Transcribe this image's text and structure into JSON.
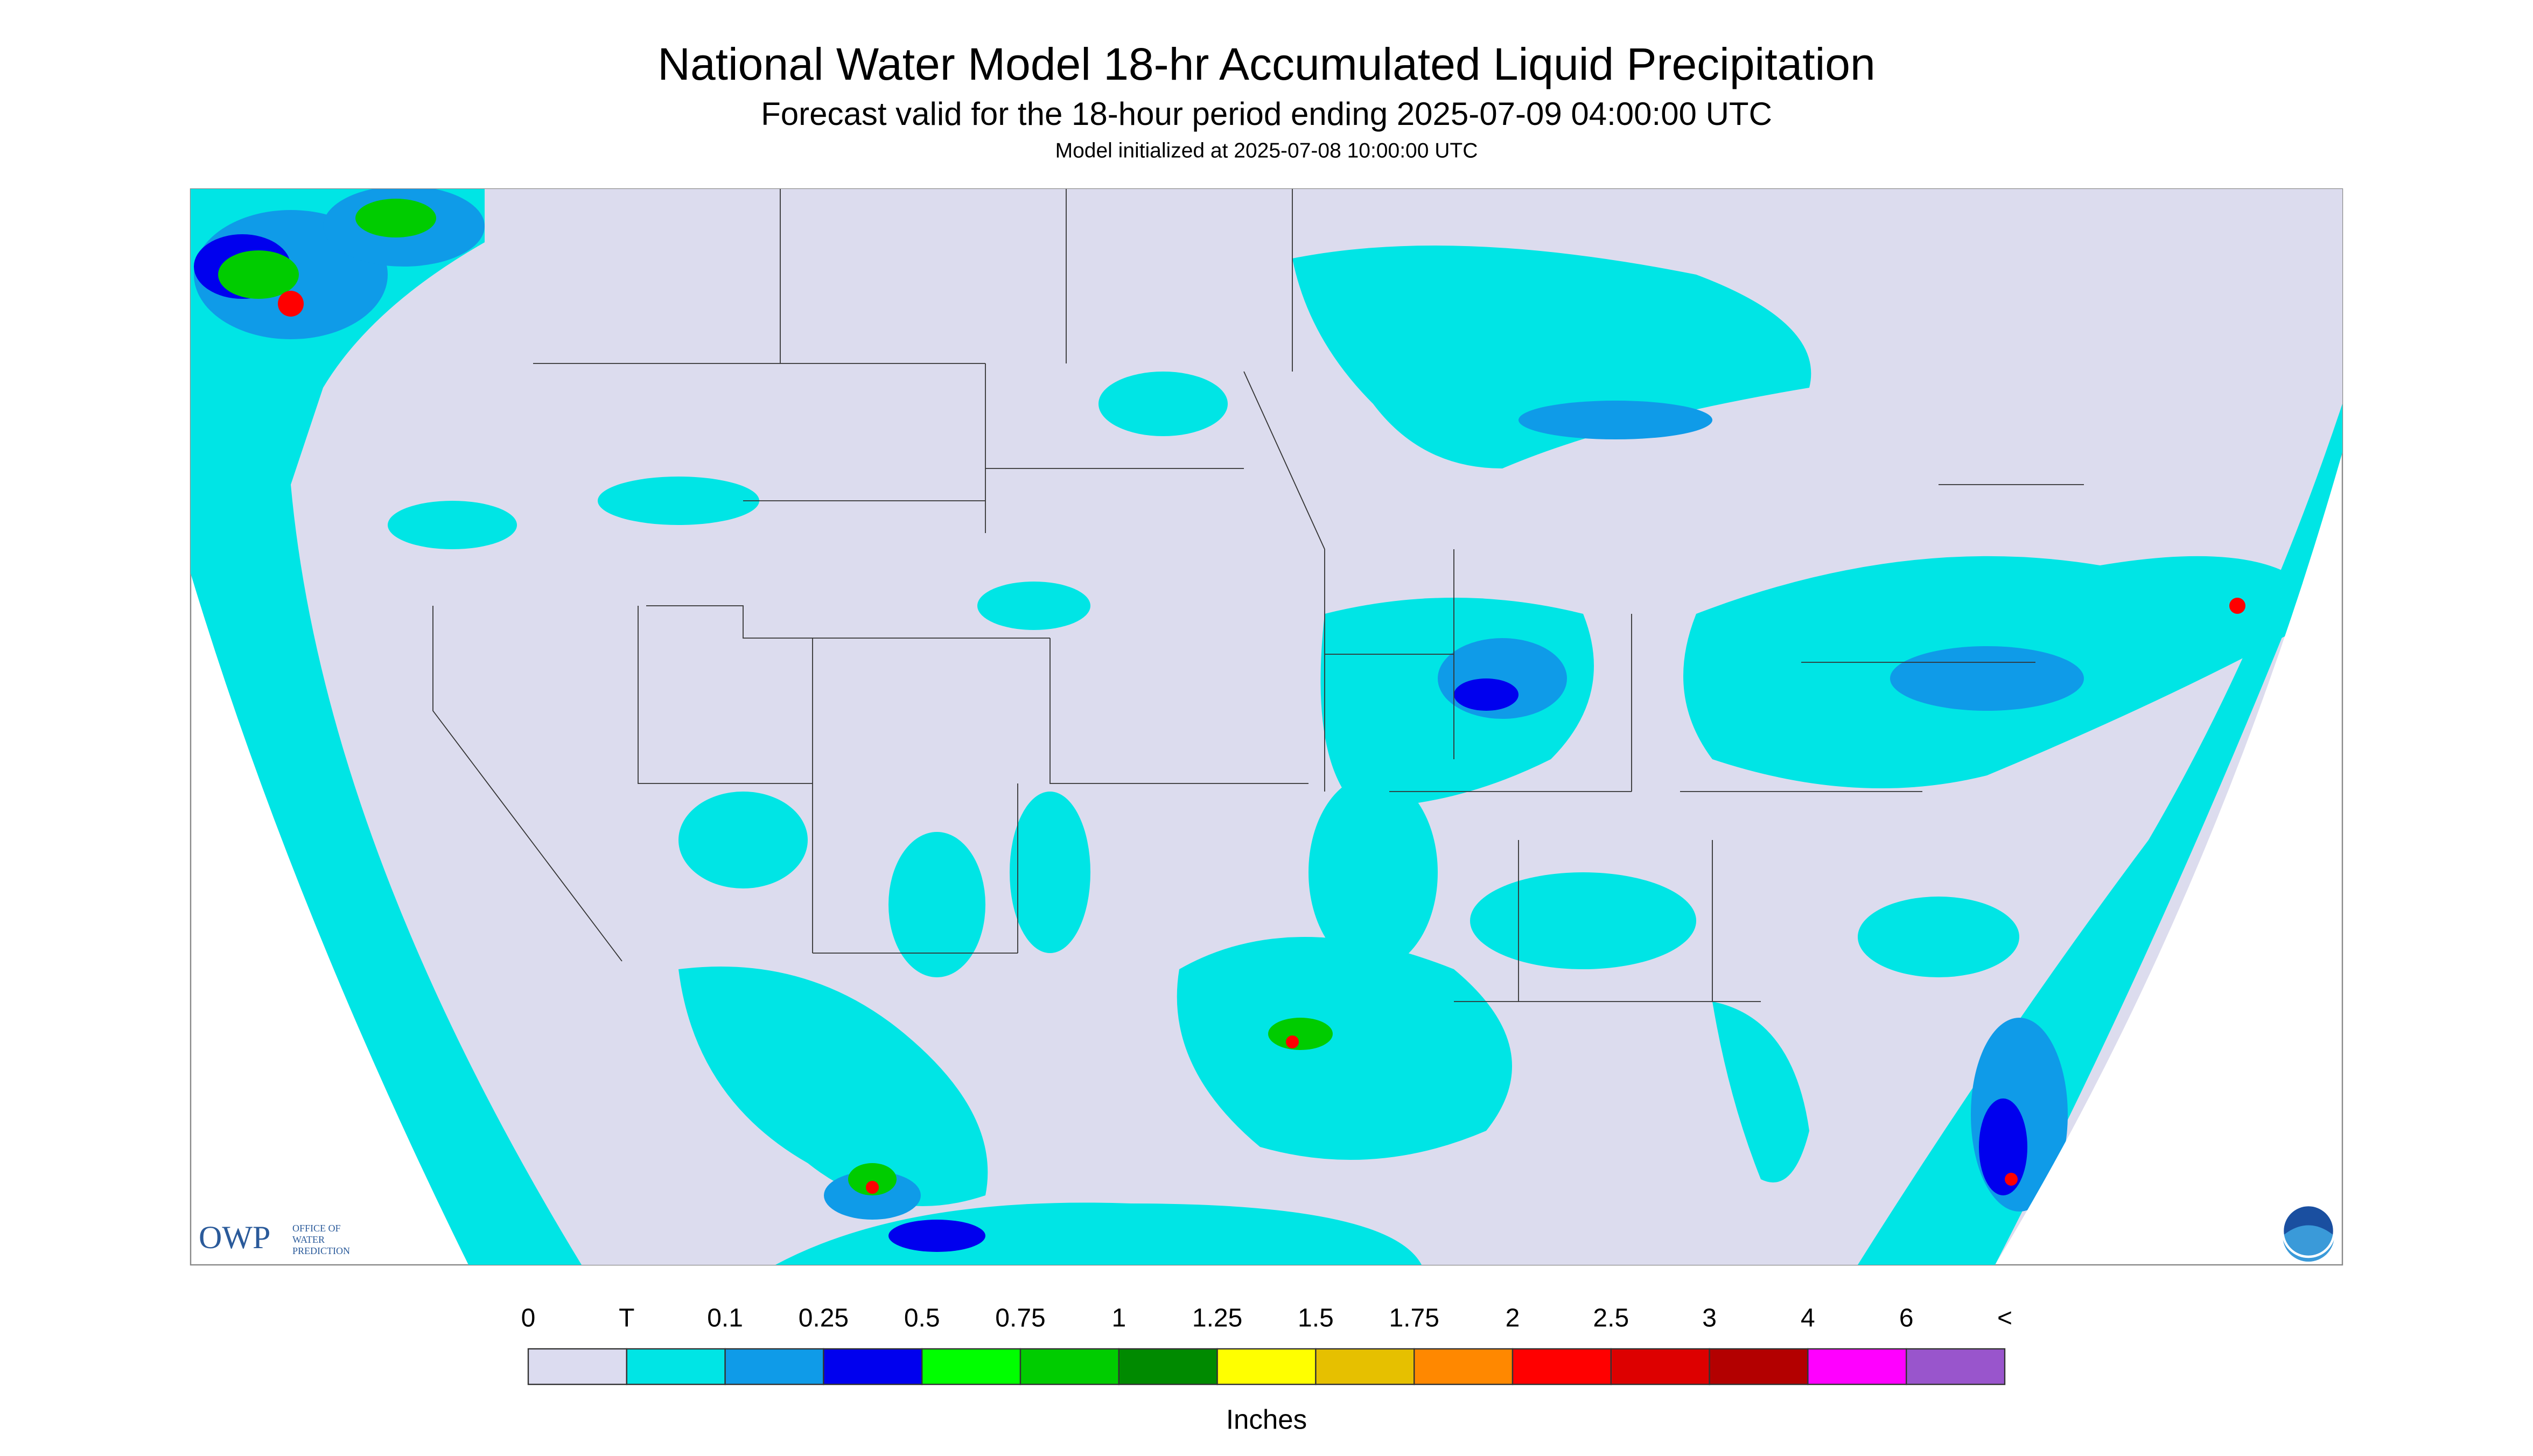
{
  "header": {
    "title": "National Water Model 18-hr Accumulated Liquid Precipitation",
    "subtitle": "Forecast valid for the 18-hour period ending 2025-07-09 04:00:00 UTC",
    "initialized": "Model initialized at 2025-07-08 10:00:00 UTC"
  },
  "legend": {
    "labels": [
      "0",
      "T",
      "0.1",
      "0.25",
      "0.5",
      "0.75",
      "1",
      "1.25",
      "1.5",
      "1.75",
      "2",
      "2.5",
      "3",
      "4",
      "6",
      "<"
    ],
    "colors": [
      "#dcdcf0",
      "#00e5e5",
      "#0f9be8",
      "#0000ee",
      "#00ff00",
      "#00cc00",
      "#008a00",
      "#ffff00",
      "#e6c000",
      "#ff8800",
      "#ff0000",
      "#dd0000",
      "#b30000",
      "#ff00ff",
      "#9955cc"
    ],
    "unit": "Inches"
  },
  "logo": {
    "owp": "OWP",
    "office": [
      "OFFICE OF",
      "WATER",
      "PREDICTION"
    ]
  }
}
